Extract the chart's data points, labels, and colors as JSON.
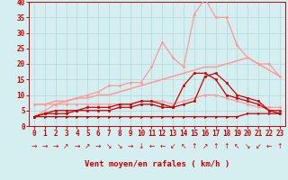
{
  "background_color": "#d5eef0",
  "grid_color": "#b0d8dc",
  "x_values": [
    0,
    1,
    2,
    3,
    4,
    5,
    6,
    7,
    8,
    9,
    10,
    11,
    12,
    13,
    14,
    15,
    16,
    17,
    18,
    19,
    20,
    21,
    22,
    23
  ],
  "xlabel": "Vent moyen/en rafales ( km/h )",
  "xlim": [
    -0.5,
    23.5
  ],
  "ylim": [
    0,
    40
  ],
  "yticks": [
    0,
    5,
    10,
    15,
    20,
    25,
    30,
    35,
    40
  ],
  "series": [
    {
      "y": [
        3,
        3,
        3,
        3,
        3,
        3,
        3,
        3,
        3,
        3,
        3,
        3,
        3,
        3,
        3,
        3,
        3,
        3,
        3,
        3,
        4,
        4,
        4,
        4
      ],
      "color": "#cc0000",
      "linewidth": 0.9,
      "marker": ">",
      "markersize": 1.8,
      "zorder": 5
    },
    {
      "y": [
        3,
        4,
        4,
        4,
        5,
        5,
        5,
        5,
        6,
        6,
        7,
        7,
        6,
        6,
        7,
        8,
        16,
        17,
        14,
        10,
        9,
        8,
        5,
        5
      ],
      "color": "#cc0000",
      "linewidth": 0.9,
      "marker": "o",
      "markersize": 1.8,
      "zorder": 5
    },
    {
      "y": [
        3,
        4,
        5,
        5,
        5,
        6,
        6,
        6,
        7,
        7,
        8,
        8,
        7,
        6,
        13,
        17,
        17,
        15,
        10,
        9,
        8,
        7,
        5,
        4
      ],
      "color": "#cc0000",
      "linewidth": 0.9,
      "marker": "o",
      "markersize": 1.8,
      "zorder": 5
    },
    {
      "y": [
        7,
        7,
        7,
        7,
        7,
        7,
        7,
        7,
        7,
        7,
        8,
        8,
        8,
        7,
        8,
        9,
        10,
        10,
        9,
        8,
        7,
        6,
        6,
        6
      ],
      "color": "#ff9999",
      "linewidth": 0.9,
      "marker": "o",
      "markersize": 1.8,
      "zorder": 4
    },
    {
      "y": [
        7,
        7,
        8,
        8,
        9,
        9,
        10,
        10,
        11,
        12,
        13,
        14,
        15,
        16,
        17,
        18,
        19,
        19,
        20,
        21,
        22,
        20,
        18,
        16
      ],
      "color": "#ff9999",
      "linewidth": 1.1,
      "marker": null,
      "markersize": 0,
      "zorder": 3
    },
    {
      "y": [
        3,
        5,
        7,
        8,
        9,
        10,
        11,
        13,
        13,
        14,
        14,
        19,
        27,
        22,
        19,
        36,
        41,
        35,
        35,
        26,
        22,
        20,
        20,
        16
      ],
      "color": "#ff9999",
      "linewidth": 0.9,
      "marker": "o",
      "markersize": 1.8,
      "zorder": 4
    }
  ],
  "wind_arrows": [
    "→",
    "→",
    "→",
    "↗",
    "→",
    "↗",
    "→",
    "↘",
    "↘",
    "→",
    "↓",
    "←",
    "←",
    "↙",
    "↖",
    "↑",
    "↗",
    "↑",
    "↑",
    "↖",
    "↘",
    "↙",
    "←",
    "↑"
  ],
  "arrow_fontsize": 5.5,
  "tick_fontsize": 5.5,
  "xlabel_fontsize": 6.5
}
